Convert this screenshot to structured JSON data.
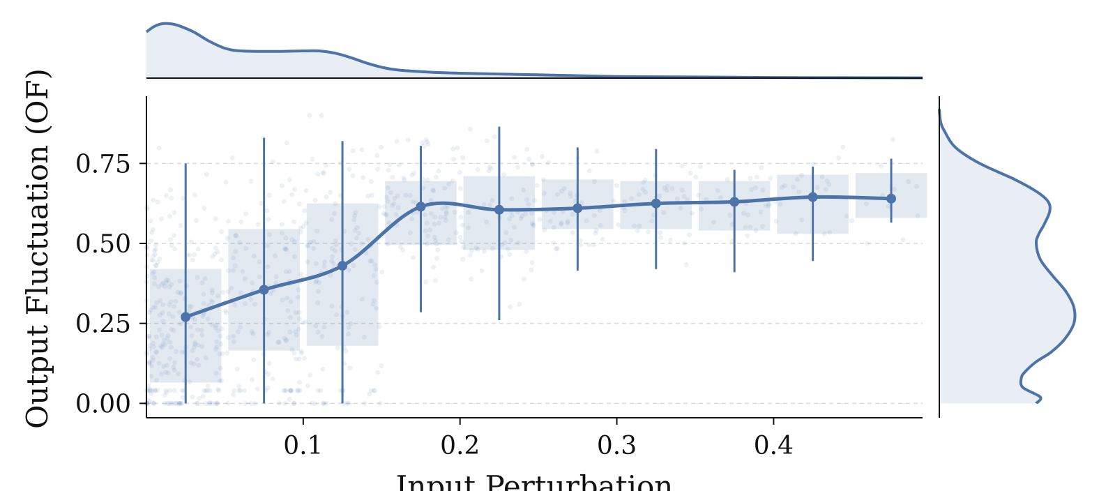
{
  "chart_data": {
    "type": "scatter",
    "xlabel": "Input Perturbation",
    "ylabel": "Output Fluctuation (OF)",
    "xlim": [
      0.0,
      0.495
    ],
    "ylim": [
      -0.045,
      0.96
    ],
    "x_ticks": [
      0.1,
      0.2,
      0.3,
      0.4
    ],
    "x_tick_labels": [
      "0.1",
      "0.2",
      "0.3",
      "0.4"
    ],
    "y_ticks": [
      0.0,
      0.25,
      0.5,
      0.75
    ],
    "y_tick_labels": [
      "0.00",
      "0.25",
      "0.50",
      "0.75"
    ],
    "grid": "horizontal dashed",
    "color": "#4c74a8",
    "binned_summary": {
      "bins": [
        [
          0.0,
          0.05
        ],
        [
          0.05,
          0.1
        ],
        [
          0.1,
          0.15
        ],
        [
          0.15,
          0.2
        ],
        [
          0.2,
          0.25
        ],
        [
          0.25,
          0.3
        ],
        [
          0.3,
          0.35
        ],
        [
          0.35,
          0.4
        ],
        [
          0.4,
          0.45
        ],
        [
          0.45,
          0.5
        ]
      ],
      "x": [
        0.025,
        0.075,
        0.125,
        0.175,
        0.225,
        0.275,
        0.325,
        0.375,
        0.425,
        0.475
      ],
      "mean": [
        0.27,
        0.355,
        0.43,
        0.615,
        0.605,
        0.61,
        0.625,
        0.63,
        0.645,
        0.64
      ],
      "error_low": [
        0.0,
        0.0,
        0.0,
        0.285,
        0.26,
        0.415,
        0.42,
        0.41,
        0.445,
        0.565
      ],
      "error_high": [
        0.75,
        0.83,
        0.82,
        0.805,
        0.865,
        0.8,
        0.795,
        0.73,
        0.74,
        0.765
      ],
      "iqr_low": [
        0.065,
        0.165,
        0.18,
        0.495,
        0.48,
        0.545,
        0.545,
        0.54,
        0.53,
        0.58
      ],
      "iqr_high": [
        0.42,
        0.545,
        0.625,
        0.695,
        0.71,
        0.7,
        0.695,
        0.695,
        0.715,
        0.72
      ]
    },
    "marginal_x_density": {
      "x": [
        0.0,
        0.005,
        0.01,
        0.015,
        0.02,
        0.03,
        0.04,
        0.05,
        0.06,
        0.08,
        0.1,
        0.11,
        0.12,
        0.13,
        0.14,
        0.15,
        0.16,
        0.18,
        0.2,
        0.25,
        0.3,
        0.35,
        0.4,
        0.45,
        0.495
      ],
      "density": [
        0.85,
        0.95,
        1.0,
        1.0,
        0.97,
        0.85,
        0.68,
        0.55,
        0.5,
        0.49,
        0.5,
        0.5,
        0.46,
        0.38,
        0.28,
        0.2,
        0.15,
        0.11,
        0.09,
        0.06,
        0.03,
        0.02,
        0.012,
        0.008,
        0.005
      ]
    },
    "marginal_y_density": {
      "y": [
        0.0,
        0.02,
        0.05,
        0.08,
        0.1,
        0.13,
        0.16,
        0.2,
        0.25,
        0.3,
        0.35,
        0.4,
        0.45,
        0.5,
        0.53,
        0.56,
        0.6,
        0.63,
        0.66,
        0.7,
        0.75,
        0.8,
        0.85,
        0.88,
        0.92
      ],
      "density": [
        0.72,
        0.75,
        0.62,
        0.61,
        0.64,
        0.72,
        0.83,
        0.93,
        1.0,
        1.0,
        0.94,
        0.84,
        0.75,
        0.72,
        0.74,
        0.78,
        0.82,
        0.81,
        0.73,
        0.56,
        0.3,
        0.12,
        0.04,
        0.01,
        0.0
      ]
    }
  }
}
